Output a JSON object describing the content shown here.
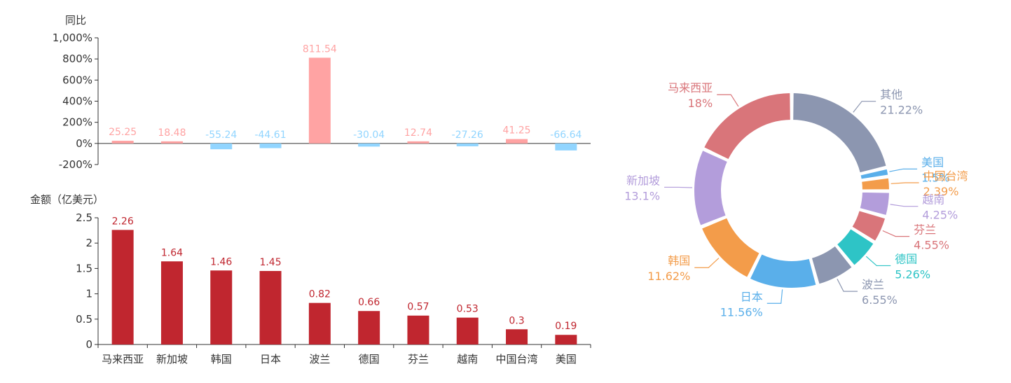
{
  "colors": {
    "yoy_positive": "#ffa3a3",
    "yoy_negative": "#91d5ff",
    "amount_bar": "#c0262f",
    "amount_label": "#c0262f",
    "axis": "#333333"
  },
  "chart_data": [
    {
      "type": "bar",
      "id": "yoy",
      "ylabel": "同比",
      "ylim": [
        -200,
        1000
      ],
      "yticks": [
        "1,000%",
        "800%",
        "600%",
        "400%",
        "200%",
        "0%",
        "-200%"
      ],
      "ytick_values": [
        1000,
        800,
        600,
        400,
        200,
        0,
        -200
      ],
      "categories": [
        "马来西亚",
        "新加坡",
        "韩国",
        "日本",
        "波兰",
        "德国",
        "芬兰",
        "越南",
        "中国台湾",
        "美国"
      ],
      "values": [
        25.25,
        18.48,
        -55.24,
        -44.61,
        811.54,
        -30.04,
        12.74,
        -27.26,
        41.25,
        -66.64
      ],
      "value_labels": [
        "25.25",
        "18.48",
        "-55.24",
        "-44.61",
        "811.54",
        "-30.04",
        "12.74",
        "-27.26",
        "41.25",
        "-66.64"
      ]
    },
    {
      "type": "bar",
      "id": "amount",
      "ylabel": "金额（亿美元）",
      "ylim": [
        0,
        2.5
      ],
      "yticks": [
        "2.5",
        "2",
        "1.5",
        "1",
        "0.5",
        "0"
      ],
      "ytick_values": [
        2.5,
        2,
        1.5,
        1,
        0.5,
        0
      ],
      "categories": [
        "马来西亚",
        "新加坡",
        "韩国",
        "日本",
        "波兰",
        "德国",
        "芬兰",
        "越南",
        "中国台湾",
        "美国"
      ],
      "values": [
        2.26,
        1.64,
        1.46,
        1.45,
        0.82,
        0.66,
        0.57,
        0.53,
        0.3,
        0.19
      ],
      "value_labels": [
        "2.26",
        "1.64",
        "1.46",
        "1.45",
        "0.82",
        "0.66",
        "0.57",
        "0.53",
        "0.3",
        "0.19"
      ]
    },
    {
      "type": "pie",
      "id": "share",
      "donut": true,
      "slices": [
        {
          "name": "其他",
          "value": 21.22,
          "label": "21.22%",
          "color": "#8c96b0"
        },
        {
          "name": "美国",
          "value": 1.5,
          "label": "1.5%",
          "color": "#5aafea"
        },
        {
          "name": "中国台湾",
          "value": 2.39,
          "label": "2.39%",
          "color": "#f39c4a"
        },
        {
          "name": "越南",
          "value": 4.25,
          "label": "4.25%",
          "color": "#b39ddb"
        },
        {
          "name": "芬兰",
          "value": 4.55,
          "label": "4.55%",
          "color": "#d9757a"
        },
        {
          "name": "德国",
          "value": 5.26,
          "label": "5.26%",
          "color": "#2ec4c6"
        },
        {
          "name": "波兰",
          "value": 6.55,
          "label": "6.55%",
          "color": "#8c96b0"
        },
        {
          "name": "日本",
          "value": 11.56,
          "label": "11.56%",
          "color": "#5aafea"
        },
        {
          "name": "韩国",
          "value": 11.62,
          "label": "11.62%",
          "color": "#f39c4a"
        },
        {
          "name": "新加坡",
          "value": 13.1,
          "label": "13.1%",
          "color": "#b39ddb"
        },
        {
          "name": "马来西亚",
          "value": 18.0,
          "label": "18%",
          "color": "#d9757a"
        }
      ]
    }
  ]
}
